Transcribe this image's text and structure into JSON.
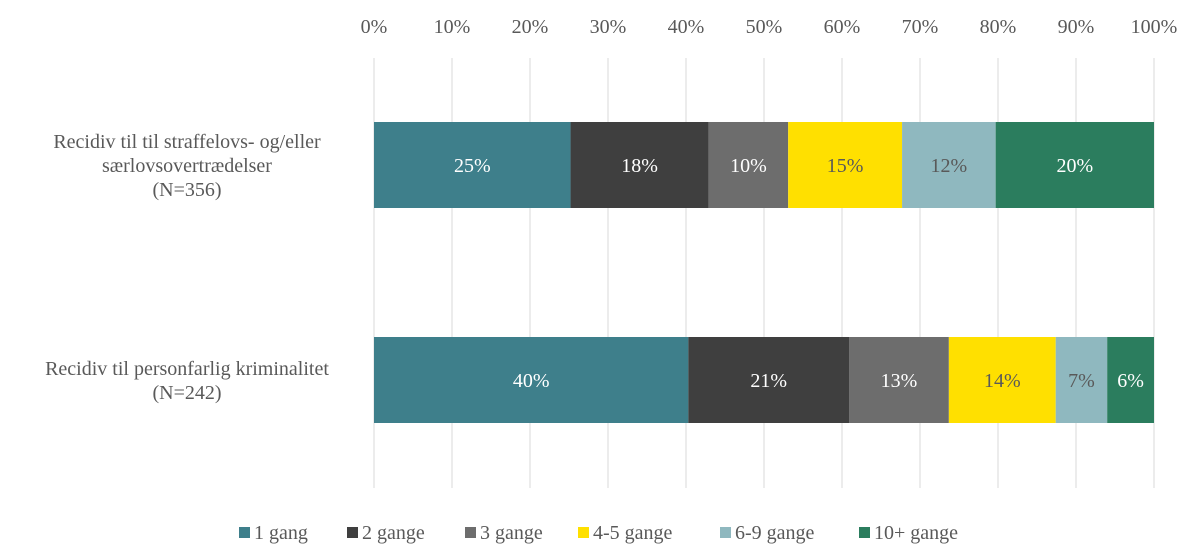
{
  "chart_data": {
    "type": "bar",
    "orientation": "horizontal-stacked-100",
    "x_ticks": [
      "0%",
      "10%",
      "20%",
      "30%",
      "40%",
      "50%",
      "60%",
      "70%",
      "80%",
      "90%",
      "100%"
    ],
    "xlim": [
      0,
      100
    ],
    "grid": true,
    "legend_position": "bottom",
    "categories": [
      [
        "Recidiv til til straffelovs- og/eller",
        "særlovsovertrædelser",
        "(N=356)"
      ],
      [
        "Recidiv til personfarlig kriminalitet",
        "(N=242)"
      ]
    ],
    "series": [
      {
        "name": "1 gang",
        "color": "#3e7f8b",
        "label_color": "#ffffff",
        "values": [
          25.2,
          40.3
        ],
        "labels": [
          "25%",
          "40%"
        ]
      },
      {
        "name": "2 gange",
        "color": "#3f3f3f",
        "label_color": "#ffffff",
        "values": [
          17.7,
          20.6
        ],
        "labels": [
          "18%",
          "21%"
        ]
      },
      {
        "name": "3 gange",
        "color": "#6d6d6d",
        "label_color": "#ffffff",
        "values": [
          10.2,
          12.8
        ],
        "labels": [
          "10%",
          "13%"
        ]
      },
      {
        "name": "4-5 gange",
        "color": "#ffe000",
        "label_color": "#595959",
        "values": [
          14.6,
          13.7
        ],
        "labels": [
          "15%",
          "14%"
        ]
      },
      {
        "name": "6-9 gange",
        "color": "#8fb8bf",
        "label_color": "#595959",
        "values": [
          12.0,
          6.6
        ],
        "labels": [
          "12%",
          "7%"
        ]
      },
      {
        "name": "10+ gange",
        "color": "#2b7d5e",
        "label_color": "#ffffff",
        "values": [
          20.3,
          6.0
        ],
        "labels": [
          "20%",
          "6%"
        ]
      }
    ]
  }
}
